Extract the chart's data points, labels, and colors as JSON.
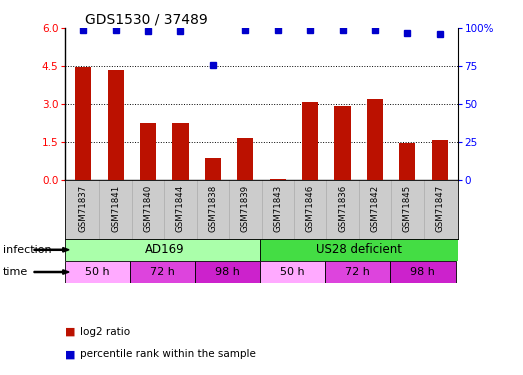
{
  "title": "GDS1530 / 37489",
  "samples": [
    "GSM71837",
    "GSM71841",
    "GSM71840",
    "GSM71844",
    "GSM71838",
    "GSM71839",
    "GSM71843",
    "GSM71846",
    "GSM71836",
    "GSM71842",
    "GSM71845",
    "GSM71847"
  ],
  "log2_ratio": [
    4.47,
    4.35,
    2.25,
    2.26,
    0.87,
    1.65,
    0.05,
    3.1,
    2.93,
    3.22,
    1.48,
    1.58
  ],
  "percentile_rank": [
    99,
    99,
    98,
    98,
    76,
    99,
    99,
    99,
    99,
    99,
    97,
    96
  ],
  "bar_color": "#bb1100",
  "dot_color": "#0000cc",
  "ylim_left": [
    0,
    6
  ],
  "ylim_right": [
    0,
    100
  ],
  "yticks_left": [
    0,
    1.5,
    3.0,
    4.5,
    6.0
  ],
  "yticks_right": [
    0,
    25,
    50,
    75,
    100
  ],
  "infection_ad169_color": "#aaffaa",
  "infection_us28_color": "#44dd44",
  "time_50h_color": "#ffaaff",
  "time_72h_color": "#dd44dd",
  "time_98h_color": "#cc22cc",
  "legend_items": [
    {
      "label": "log2 ratio",
      "color": "#bb1100"
    },
    {
      "label": "percentile rank within the sample",
      "color": "#0000cc"
    }
  ]
}
